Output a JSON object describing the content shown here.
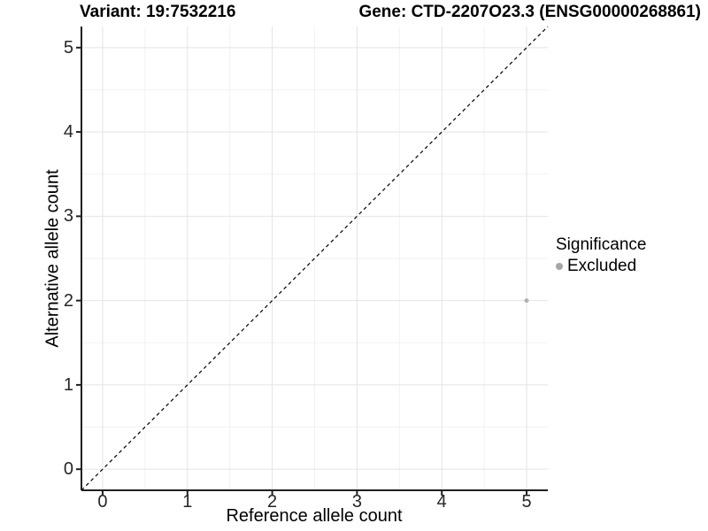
{
  "titles": {
    "variant": "Variant: 19:7532216",
    "gene": "Gene: CTD-2207O23.3 (ENSG00000268861)"
  },
  "legend": {
    "title": "Significance",
    "items": [
      {
        "label": "Excluded",
        "color": "#a6a6a6"
      }
    ]
  },
  "chart_data": {
    "type": "scatter",
    "title": "Variant: 19:7532216  |  Gene: CTD-2207O23.3 (ENSG00000268861)",
    "xlabel": "Reference allele count",
    "ylabel": "Alternative allele count",
    "xlim": [
      -0.25,
      5.25
    ],
    "ylim": [
      -0.25,
      5.25
    ],
    "x_ticks": [
      0,
      1,
      2,
      3,
      4,
      5
    ],
    "y_ticks": [
      0,
      1,
      2,
      3,
      4,
      5
    ],
    "x_minor_ticks": [
      0.5,
      1.5,
      2.5,
      3.5,
      4.5
    ],
    "y_minor_ticks": [
      0.5,
      1.5,
      2.5,
      3.5,
      4.5
    ],
    "grid": "major+minor",
    "legend_position": "right",
    "series": [
      {
        "name": "Excluded",
        "color": "#b3b3b3",
        "points": [
          {
            "x": 5,
            "y": 2
          }
        ]
      }
    ],
    "reference_line": {
      "style": "dashed",
      "slope": 1,
      "intercept": 0,
      "color": "#000000"
    }
  },
  "colors": {
    "background": "#ffffff",
    "grid_major": "#e4e4e4",
    "grid_minor": "#f2f2f2",
    "axis_line": "#1f1f1f",
    "tick_mark": "#1f1f1f",
    "point": "#b3b3b3",
    "legend_dot": "#a6a6a6",
    "reference_line": "#000000"
  }
}
